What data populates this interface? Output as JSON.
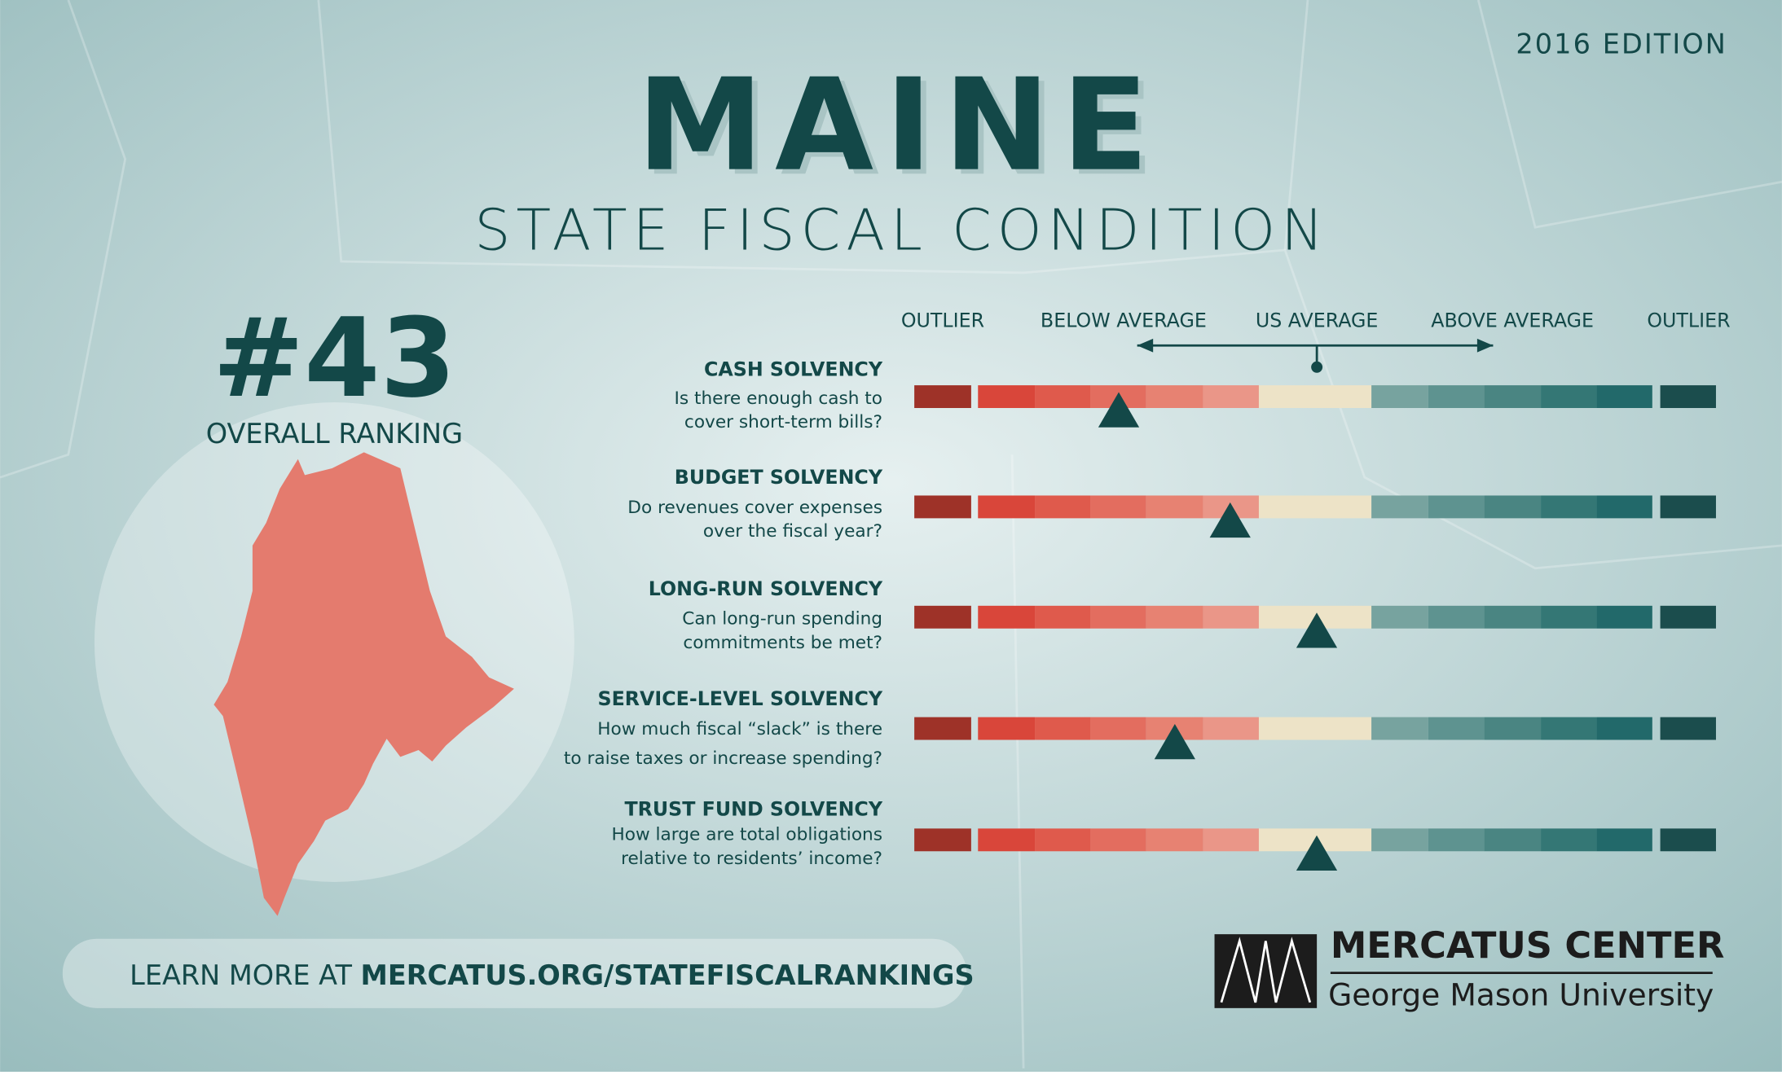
{
  "edition": "2016 EDITION",
  "title": "MAINE",
  "subtitle": "STATE FISCAL CONDITION",
  "ranking": {
    "rank": "#43",
    "label": "OVERALL RANKING"
  },
  "scale": {
    "labels": [
      "OUTLIER",
      "BELOW AVERAGE",
      "US AVERAGE",
      "ABOVE AVERAGE",
      "OUTLIER"
    ]
  },
  "rows": [
    {
      "title": "CASH SOLVENCY",
      "question": [
        "Is there enough cash to",
        "cover short-term bills?"
      ],
      "marker": 25.5
    },
    {
      "title": "BUDGET SOLVENCY",
      "question": [
        "Do revenues cover expenses",
        "over the fiscal year?"
      ],
      "marker": 39.4
    },
    {
      "title": "LONG-RUN SOLVENCY",
      "question": [
        "Can long-run spending",
        "commitments be met?"
      ],
      "marker": 50.2
    },
    {
      "title": "SERVICE-LEVEL SOLVENCY",
      "question": [
        "How much fiscal “slack” is there",
        "to raise taxes or increase spending?"
      ],
      "marker": 32.5
    },
    {
      "title": "TRUST FUND SOLVENCY",
      "question": [
        "How large are total obligations",
        "relative to residents’ income?"
      ],
      "marker": 50.2
    }
  ],
  "footer": {
    "prefix": "LEARN MORE AT ",
    "link": "MERCATUS.ORG/STATEFISCALRANKINGS"
  },
  "logo": {
    "name": "MERCATUS CENTER",
    "university": "George Mason University"
  }
}
